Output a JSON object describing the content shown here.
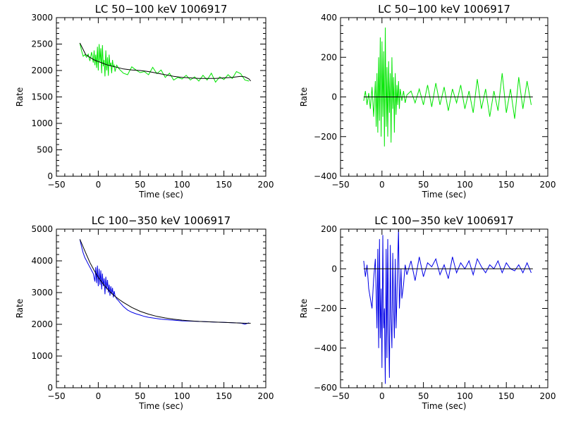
{
  "chart_data": [
    {
      "type": "line",
      "title": "LC 50−100 keV  1006917",
      "xlabel": "Time (sec)",
      "ylabel": "Rate",
      "xlim": [
        -50,
        200
      ],
      "ylim": [
        0,
        3000
      ],
      "xticks": [
        -50,
        0,
        50,
        100,
        150,
        200
      ],
      "xtick_labels": [
        "−50",
        "0",
        "50",
        "100",
        "150",
        "200"
      ],
      "yticks": [
        0,
        500,
        1000,
        1500,
        2000,
        2500,
        3000
      ],
      "ytick_labels": [
        "0",
        "500",
        "1000",
        "1500",
        "2000",
        "2500",
        "3000"
      ],
      "series": [
        {
          "color": "#00e600",
          "x": [
            -22,
            -20,
            -18,
            -16,
            -14,
            -12,
            -10,
            -8,
            -6,
            -5,
            -4,
            -3,
            -2,
            -1,
            0,
            1,
            2,
            3,
            4,
            5,
            6,
            7,
            8,
            9,
            10,
            11,
            12,
            13,
            14,
            15,
            16,
            17,
            18,
            19,
            20,
            22,
            24,
            26,
            28,
            30,
            35,
            40,
            45,
            50,
            55,
            60,
            65,
            70,
            75,
            80,
            85,
            90,
            95,
            100,
            105,
            110,
            115,
            120,
            125,
            130,
            135,
            140,
            145,
            150,
            155,
            160,
            165,
            170,
            175,
            180
          ],
          "y": [
            2520,
            2380,
            2270,
            2300,
            2250,
            2310,
            2180,
            2350,
            2150,
            2380,
            2100,
            2300,
            2050,
            2450,
            2000,
            2500,
            2150,
            2420,
            1950,
            2480,
            2080,
            2200,
            1890,
            2380,
            2000,
            2250,
            1900,
            2300,
            2080,
            2150,
            1950,
            2200,
            2060,
            2100,
            1980,
            2100,
            2050,
            2010,
            1980,
            1950,
            1920,
            2070,
            2010,
            1960,
            1980,
            1920,
            2060,
            1940,
            2010,
            1870,
            1950,
            1820,
            1870,
            1840,
            1910,
            1820,
            1880,
            1800,
            1910,
            1820,
            1950,
            1780,
            1880,
            1830,
            1920,
            1850,
            1980,
            1940,
            1820,
            1800
          ]
        },
        {
          "color": "#000000",
          "x": [
            -22,
            -15,
            -10,
            -5,
            0,
            5,
            10,
            15,
            20,
            25,
            30,
            40,
            50,
            60,
            70,
            80,
            90,
            100,
            110,
            120,
            130,
            140,
            150,
            160,
            170,
            175,
            180,
            182
          ],
          "y": [
            2520,
            2300,
            2250,
            2200,
            2170,
            2140,
            2110,
            2090,
            2070,
            2050,
            2030,
            2010,
            2000,
            1980,
            1950,
            1920,
            1890,
            1870,
            1860,
            1850,
            1850,
            1850,
            1860,
            1870,
            1890,
            1880,
            1840,
            1800
          ]
        }
      ]
    },
    {
      "type": "line",
      "title": "LC 50−100 keV  1006917",
      "xlabel": "Time (sec)",
      "ylabel": "Rate",
      "xlim": [
        -50,
        200
      ],
      "ylim": [
        -400,
        400
      ],
      "xticks": [
        -50,
        0,
        50,
        100,
        150,
        200
      ],
      "xtick_labels": [
        "−50",
        "0",
        "50",
        "100",
        "150",
        "200"
      ],
      "yticks": [
        -400,
        -200,
        0,
        200,
        400
      ],
      "ytick_labels": [
        "−400",
        "−200",
        "0",
        "200",
        "400"
      ],
      "series": [
        {
          "color": "#00e600",
          "x": [
            -22,
            -20,
            -18,
            -16,
            -14,
            -12,
            -10,
            -8,
            -7,
            -6,
            -5,
            -4,
            -3,
            -2,
            -1,
            0,
            1,
            2,
            3,
            4,
            5,
            6,
            7,
            8,
            9,
            10,
            11,
            12,
            13,
            14,
            15,
            16,
            17,
            18,
            19,
            20,
            21,
            22,
            24,
            26,
            28,
            30,
            35,
            40,
            45,
            50,
            55,
            60,
            65,
            70,
            75,
            80,
            85,
            90,
            95,
            100,
            105,
            110,
            115,
            120,
            125,
            130,
            135,
            140,
            145,
            150,
            155,
            160,
            165,
            170,
            175,
            180
          ],
          "y": [
            -20,
            30,
            -40,
            20,
            -60,
            50,
            -100,
            80,
            -150,
            120,
            -180,
            200,
            -120,
            300,
            -200,
            280,
            -100,
            230,
            -250,
            350,
            -150,
            150,
            -200,
            180,
            -80,
            120,
            -230,
            200,
            -60,
            100,
            -180,
            120,
            -90,
            60,
            -40,
            80,
            -60,
            40,
            -20,
            30,
            -30,
            10,
            30,
            -30,
            40,
            -40,
            60,
            -50,
            70,
            -40,
            50,
            -70,
            40,
            -30,
            60,
            -60,
            30,
            -80,
            90,
            -60,
            40,
            -100,
            30,
            -70,
            120,
            -80,
            40,
            -110,
            100,
            -60,
            80,
            -40
          ]
        },
        {
          "color": "#000000",
          "x": [
            -22,
            182
          ],
          "y": [
            0,
            0
          ]
        }
      ]
    },
    {
      "type": "line",
      "title": "LC 100−350 keV  1006917",
      "xlabel": "Time (sec)",
      "ylabel": "Rate",
      "xlim": [
        -50,
        200
      ],
      "ylim": [
        0,
        5000
      ],
      "xticks": [
        -50,
        0,
        50,
        100,
        150,
        200
      ],
      "xtick_labels": [
        "−50",
        "0",
        "50",
        "100",
        "150",
        "200"
      ],
      "yticks": [
        0,
        1000,
        2000,
        3000,
        4000,
        5000
      ],
      "ytick_labels": [
        "0",
        "1000",
        "2000",
        "3000",
        "4000",
        "5000"
      ],
      "series": [
        {
          "color": "#0000e6",
          "x": [
            -22,
            -20,
            -18,
            -16,
            -14,
            -12,
            -10,
            -8,
            -6,
            -4,
            -3,
            -2,
            -1,
            0,
            1,
            2,
            3,
            4,
            5,
            6,
            7,
            8,
            9,
            10,
            11,
            12,
            13,
            14,
            15,
            16,
            17,
            18,
            19,
            20,
            22,
            24,
            26,
            28,
            30,
            35,
            40,
            45,
            50,
            55,
            60,
            65,
            70,
            75,
            80,
            85,
            90,
            95,
            100,
            110,
            120,
            130,
            140,
            150,
            160,
            170,
            175,
            180
          ],
          "y": [
            4680,
            4450,
            4250,
            4100,
            4000,
            3900,
            3800,
            3700,
            3600,
            3350,
            3800,
            3300,
            3850,
            3200,
            3750,
            3250,
            3700,
            3100,
            3600,
            3200,
            3450,
            2950,
            3500,
            3100,
            3400,
            3000,
            3250,
            2900,
            3200,
            2950,
            3150,
            2850,
            3050,
            2900,
            2800,
            2750,
            2680,
            2620,
            2560,
            2450,
            2380,
            2330,
            2290,
            2250,
            2220,
            2200,
            2180,
            2160,
            2150,
            2140,
            2130,
            2120,
            2110,
            2100,
            2090,
            2080,
            2070,
            2060,
            2050,
            2040,
            2000,
            2050
          ]
        },
        {
          "color": "#000000",
          "x": [
            -22,
            -15,
            -10,
            -5,
            0,
            5,
            10,
            15,
            20,
            25,
            30,
            40,
            50,
            60,
            70,
            80,
            90,
            100,
            110,
            120,
            130,
            140,
            150,
            160,
            170,
            180,
            182
          ],
          "y": [
            4680,
            4250,
            3950,
            3700,
            3480,
            3300,
            3140,
            3000,
            2880,
            2780,
            2690,
            2530,
            2410,
            2320,
            2250,
            2200,
            2160,
            2130,
            2110,
            2090,
            2080,
            2070,
            2060,
            2050,
            2040,
            2030,
            2030
          ]
        }
      ]
    },
    {
      "type": "line",
      "title": "LC 100−350 keV  1006917",
      "xlabel": "Time (sec)",
      "ylabel": "Rate",
      "xlim": [
        -50,
        200
      ],
      "ylim": [
        -600,
        200
      ],
      "xticks": [
        -50,
        0,
        50,
        100,
        150,
        200
      ],
      "xtick_labels": [
        "−50",
        "0",
        "50",
        "100",
        "150",
        "200"
      ],
      "yticks": [
        -600,
        -400,
        -200,
        0,
        200
      ],
      "ytick_labels": [
        "−600",
        "−400",
        "−200",
        "0",
        "200"
      ],
      "series": [
        {
          "color": "#0000e6",
          "x": [
            -22,
            -20,
            -18,
            -16,
            -14,
            -12,
            -10,
            -8,
            -6,
            -5,
            -4,
            -3,
            -2,
            -1,
            0,
            1,
            2,
            3,
            4,
            5,
            6,
            7,
            8,
            9,
            10,
            11,
            12,
            13,
            14,
            15,
            16,
            17,
            18,
            19,
            20,
            21,
            22,
            23,
            24,
            26,
            28,
            30,
            35,
            40,
            45,
            50,
            55,
            60,
            65,
            70,
            75,
            80,
            85,
            90,
            95,
            100,
            105,
            110,
            115,
            120,
            125,
            130,
            135,
            140,
            145,
            150,
            155,
            160,
            165,
            170,
            175,
            180
          ],
          "y": [
            40,
            -40,
            20,
            -100,
            -150,
            -200,
            -50,
            50,
            -300,
            100,
            -400,
            150,
            -350,
            -100,
            -500,
            170,
            -300,
            -200,
            -580,
            100,
            -450,
            150,
            -300,
            -550,
            120,
            -250,
            -400,
            80,
            -200,
            -350,
            50,
            -300,
            -150,
            40,
            200,
            -200,
            -100,
            0,
            -150,
            -80,
            20,
            -30,
            40,
            -60,
            60,
            -40,
            30,
            10,
            50,
            -30,
            20,
            -50,
            60,
            -20,
            30,
            0,
            40,
            -30,
            50,
            10,
            -20,
            20,
            0,
            40,
            -20,
            30,
            0,
            -10,
            20,
            -20,
            30,
            -20
          ]
        },
        {
          "color": "#000000",
          "x": [
            -22,
            182
          ],
          "y": [
            0,
            0
          ]
        }
      ]
    }
  ]
}
